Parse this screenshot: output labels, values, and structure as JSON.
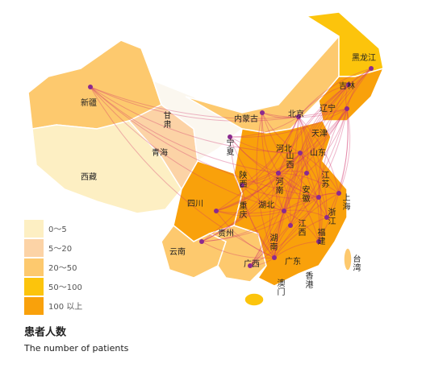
{
  "map": {
    "provinces": [
      "新疆",
      "西藏",
      "青海",
      "甘肃",
      "宁夏",
      "内蒙古",
      "黑龙江",
      "吉林",
      "辽宁",
      "北京",
      "天津",
      "河北",
      "山西",
      "山东",
      "陕西",
      "河南",
      "江苏",
      "安徽",
      "上海",
      "浙江",
      "湖北",
      "四川",
      "重庆",
      "湖南",
      "江西",
      "福建",
      "贵州",
      "云南",
      "广西",
      "广东",
      "澳门",
      "香港",
      "台湾"
    ],
    "legend": {
      "title": "患者人数",
      "subtitle": "The number of patients",
      "items": [
        {
          "label": "0～5",
          "color": "#fdefc3"
        },
        {
          "label": "5～20",
          "color": "#fcd3a6"
        },
        {
          "label": "20～50",
          "color": "#fdc96e"
        },
        {
          "label": "50～100",
          "color": "#fcc40c"
        },
        {
          "label": "100 以上",
          "color": "#f9a10b"
        }
      ]
    }
  }
}
